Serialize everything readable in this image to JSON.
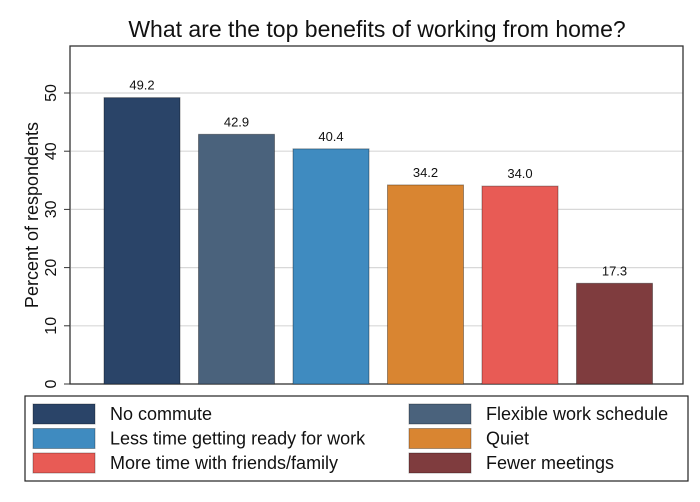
{
  "chart_data": {
    "type": "bar",
    "title": "What are the top benefits of working from home?",
    "xlabel": "",
    "ylabel": "Percent of respondents",
    "ylim": [
      0,
      58
    ],
    "yticks": [
      0,
      10,
      20,
      30,
      40,
      50
    ],
    "grid": true,
    "legend_position": "bottom",
    "categories": [
      "No commute",
      "Flexible work schedule",
      "Less time getting ready for work",
      "Quiet",
      "More time with friends/family",
      "Fewer meetings"
    ],
    "values": [
      49.2,
      42.9,
      40.4,
      34.2,
      34.0,
      17.3
    ],
    "value_labels": [
      "49.2",
      "42.9",
      "40.4",
      "34.2",
      "34.0",
      "17.3"
    ],
    "colors": [
      "#2a4468",
      "#4a627c",
      "#3f8bc0",
      "#d98531",
      "#e85b55",
      "#7f3c3e"
    ]
  }
}
